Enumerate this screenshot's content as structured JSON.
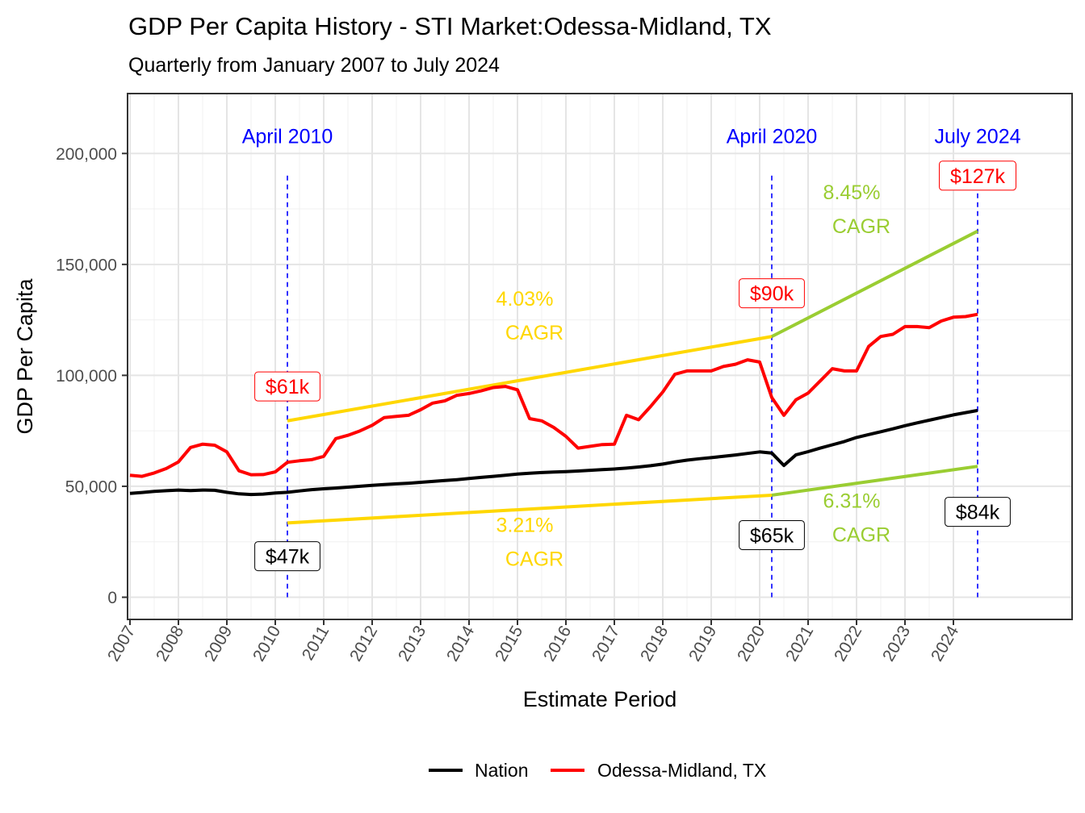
{
  "chart_data": {
    "type": "line",
    "title": "GDP Per Capita History - STI Market:Odessa-Midland, TX",
    "subtitle": "Quarterly from January 2007 to July 2024",
    "xlabel": "Estimate Period",
    "ylabel": "GDP Per Capita",
    "xlim": [
      2006.95,
      2026.45
    ],
    "ylim": [
      -10000,
      227000
    ],
    "x_ticks": [
      2007,
      2008,
      2009,
      2010,
      2011,
      2012,
      2013,
      2014,
      2015,
      2016,
      2017,
      2018,
      2019,
      2020,
      2021,
      2022,
      2023,
      2024
    ],
    "y_ticks": [
      0,
      50000,
      100000,
      150000,
      200000
    ],
    "y_tick_labels": [
      "0",
      "50,000",
      "100,000",
      "150,000",
      "200,000"
    ],
    "legend": {
      "position": "bottom",
      "entries": [
        "Nation",
        "Odessa-Midland, TX"
      ]
    },
    "series": [
      {
        "name": "Nation",
        "color": "#000000",
        "points": [
          [
            2007.0,
            46800
          ],
          [
            2007.25,
            47200
          ],
          [
            2007.5,
            47700
          ],
          [
            2007.75,
            48000
          ],
          [
            2008.0,
            48300
          ],
          [
            2008.25,
            48100
          ],
          [
            2008.5,
            48300
          ],
          [
            2008.75,
            48200
          ],
          [
            2009.0,
            47300
          ],
          [
            2009.25,
            46600
          ],
          [
            2009.5,
            46300
          ],
          [
            2009.75,
            46500
          ],
          [
            2010.0,
            47000
          ],
          [
            2010.25,
            47300
          ],
          [
            2010.5,
            47900
          ],
          [
            2010.75,
            48500
          ],
          [
            2011.0,
            48900
          ],
          [
            2011.25,
            49200
          ],
          [
            2011.5,
            49600
          ],
          [
            2011.75,
            50000
          ],
          [
            2012.0,
            50400
          ],
          [
            2012.25,
            50800
          ],
          [
            2012.5,
            51100
          ],
          [
            2012.75,
            51400
          ],
          [
            2013.0,
            51800
          ],
          [
            2013.25,
            52200
          ],
          [
            2013.5,
            52600
          ],
          [
            2013.75,
            53000
          ],
          [
            2014.0,
            53500
          ],
          [
            2014.25,
            54000
          ],
          [
            2014.5,
            54500
          ],
          [
            2014.75,
            55000
          ],
          [
            2015.0,
            55500
          ],
          [
            2015.25,
            55900
          ],
          [
            2015.5,
            56200
          ],
          [
            2015.75,
            56400
          ],
          [
            2016.0,
            56600
          ],
          [
            2016.25,
            56900
          ],
          [
            2016.5,
            57200
          ],
          [
            2016.75,
            57500
          ],
          [
            2017.0,
            57800
          ],
          [
            2017.25,
            58200
          ],
          [
            2017.5,
            58700
          ],
          [
            2017.75,
            59300
          ],
          [
            2018.0,
            60000
          ],
          [
            2018.25,
            61000
          ],
          [
            2018.5,
            61800
          ],
          [
            2018.75,
            62400
          ],
          [
            2019.0,
            62900
          ],
          [
            2019.25,
            63500
          ],
          [
            2019.5,
            64100
          ],
          [
            2019.75,
            64800
          ],
          [
            2020.0,
            65500
          ],
          [
            2020.25,
            65000
          ],
          [
            2020.5,
            59400
          ],
          [
            2020.75,
            64200
          ],
          [
            2021.0,
            65600
          ],
          [
            2021.25,
            67200
          ],
          [
            2021.5,
            68700
          ],
          [
            2021.75,
            70200
          ],
          [
            2022.0,
            72000
          ],
          [
            2022.25,
            73300
          ],
          [
            2022.5,
            74600
          ],
          [
            2022.75,
            75900
          ],
          [
            2023.0,
            77300
          ],
          [
            2023.25,
            78600
          ],
          [
            2023.5,
            79800
          ],
          [
            2023.75,
            81000
          ],
          [
            2024.0,
            82200
          ],
          [
            2024.25,
            83200
          ],
          [
            2024.5,
            84200
          ]
        ]
      },
      {
        "name": "Odessa-Midland, TX",
        "color": "#ff0000",
        "points": [
          [
            2007.0,
            55000
          ],
          [
            2007.25,
            54500
          ],
          [
            2007.5,
            56000
          ],
          [
            2007.75,
            58000
          ],
          [
            2008.0,
            61000
          ],
          [
            2008.25,
            67500
          ],
          [
            2008.5,
            69000
          ],
          [
            2008.75,
            68500
          ],
          [
            2009.0,
            65500
          ],
          [
            2009.25,
            57000
          ],
          [
            2009.5,
            55200
          ],
          [
            2009.75,
            55300
          ],
          [
            2010.0,
            56500
          ],
          [
            2010.25,
            60800
          ],
          [
            2010.5,
            61500
          ],
          [
            2010.75,
            62000
          ],
          [
            2011.0,
            63500
          ],
          [
            2011.25,
            71500
          ],
          [
            2011.5,
            73000
          ],
          [
            2011.75,
            75000
          ],
          [
            2012.0,
            77500
          ],
          [
            2012.25,
            81000
          ],
          [
            2012.5,
            81500
          ],
          [
            2012.75,
            82000
          ],
          [
            2013.0,
            84500
          ],
          [
            2013.25,
            87500
          ],
          [
            2013.5,
            88500
          ],
          [
            2013.75,
            91000
          ],
          [
            2014.0,
            91800
          ],
          [
            2014.25,
            93000
          ],
          [
            2014.5,
            94500
          ],
          [
            2014.75,
            95000
          ],
          [
            2015.0,
            93500
          ],
          [
            2015.25,
            80500
          ],
          [
            2015.5,
            79500
          ],
          [
            2015.75,
            76500
          ],
          [
            2016.0,
            72500
          ],
          [
            2016.25,
            67200
          ],
          [
            2016.5,
            68000
          ],
          [
            2016.75,
            68800
          ],
          [
            2017.0,
            69000
          ],
          [
            2017.25,
            82000
          ],
          [
            2017.5,
            80000
          ],
          [
            2017.75,
            86000
          ],
          [
            2018.0,
            92500
          ],
          [
            2018.25,
            100500
          ],
          [
            2018.5,
            102000
          ],
          [
            2018.75,
            102000
          ],
          [
            2019.0,
            102000
          ],
          [
            2019.25,
            104000
          ],
          [
            2019.5,
            105000
          ],
          [
            2019.75,
            107000
          ],
          [
            2020.0,
            106000
          ],
          [
            2020.25,
            90000
          ],
          [
            2020.5,
            82000
          ],
          [
            2020.75,
            89000
          ],
          [
            2021.0,
            92000
          ],
          [
            2021.25,
            97500
          ],
          [
            2021.5,
            103000
          ],
          [
            2021.75,
            102000
          ],
          [
            2022.0,
            102000
          ],
          [
            2022.25,
            113000
          ],
          [
            2022.5,
            117500
          ],
          [
            2022.75,
            118500
          ],
          [
            2023.0,
            122000
          ],
          [
            2023.25,
            122000
          ],
          [
            2023.5,
            121500
          ],
          [
            2023.75,
            124500
          ],
          [
            2024.0,
            126200
          ],
          [
            2024.25,
            126500
          ],
          [
            2024.5,
            127500
          ]
        ]
      }
    ],
    "trend_lines": [
      {
        "name": "Odessa-Midland CAGR 2010-2020",
        "color": "#ffd700",
        "x": [
          2010.25,
          2020.25
        ],
        "y": [
          79500,
          117500
        ]
      },
      {
        "name": "Odessa-Midland CAGR 2020-2024",
        "color": "#9acd32",
        "x": [
          2020.25,
          2024.5
        ],
        "y": [
          117500,
          165000
        ]
      },
      {
        "name": "Nation CAGR 2010-2020",
        "color": "#ffd700",
        "x": [
          2010.25,
          2020.25
        ],
        "y": [
          33500,
          46000
        ]
      },
      {
        "name": "Nation CAGR 2020-2024",
        "color": "#9acd32",
        "x": [
          2020.25,
          2024.5
        ],
        "y": [
          46000,
          59000
        ]
      }
    ],
    "vlines": [
      {
        "x": 2010.25,
        "label": "April 2010"
      },
      {
        "x": 2020.25,
        "label": "April 2020"
      },
      {
        "x": 2024.5,
        "label": "July 2024"
      }
    ],
    "annotations": {
      "box_labels": [
        {
          "text": "$61k",
          "x": 2010.25,
          "y": 95000,
          "color": "#ff0000"
        },
        {
          "text": "$90k",
          "x": 2020.25,
          "y": 137000,
          "color": "#ff0000"
        },
        {
          "text": "$127k",
          "x": 2024.5,
          "y": 190000,
          "color": "#ff0000"
        },
        {
          "text": "$47k",
          "x": 2010.25,
          "y": 18500,
          "color": "#000000"
        },
        {
          "text": "$65k",
          "x": 2020.25,
          "y": 28000,
          "color": "#000000"
        },
        {
          "text": "$84k",
          "x": 2024.5,
          "y": 38500,
          "color": "#000000"
        }
      ],
      "cagr_labels": [
        {
          "pct": "4.03%",
          "word": "CAGR",
          "x": 2015.25,
          "y": 127000,
          "color": "#ffd700"
        },
        {
          "pct": "8.45%",
          "word": "CAGR",
          "x": 2022.0,
          "y": 175000,
          "color": "#9acd32"
        },
        {
          "pct": "3.21%",
          "word": "CAGR",
          "x": 2015.25,
          "y": 25000,
          "color": "#ffd700"
        },
        {
          "pct": "6.31%",
          "word": "CAGR",
          "x": 2022.0,
          "y": 36000,
          "color": "#9acd32"
        }
      ],
      "vline_label_y": 207500
    }
  }
}
